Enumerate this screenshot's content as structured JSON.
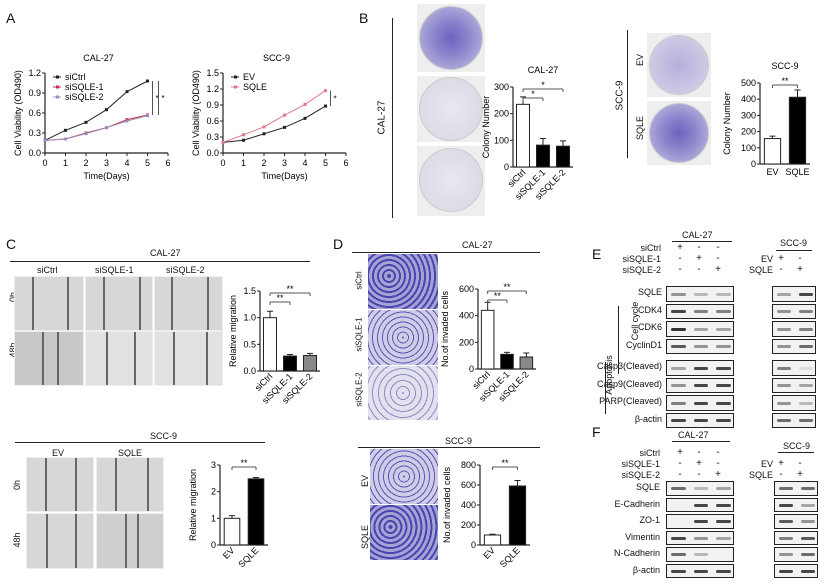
{
  "panels": {
    "A": {
      "label": "A"
    },
    "B": {
      "label": "B",
      "cell_left": "CAL-27",
      "cell_right": "SCC-9",
      "dish_labels_left": [
        "siCtrl",
        "siSQLE-1",
        "siSQLE-2"
      ],
      "dish_labels_right": [
        "EV",
        "SQLE"
      ]
    },
    "C": {
      "label": "C",
      "top_cell": "CAL-27",
      "top_cols": [
        "siCtrl",
        "siSQLE-1",
        "siSQLE-2"
      ],
      "rows": [
        "0h",
        "48h"
      ],
      "bottom_cell": "SCC-9",
      "bottom_cols": [
        "EV",
        "SQLE"
      ]
    },
    "D": {
      "label": "D",
      "top_cell": "CAL-27",
      "top_rows": [
        "siCtrl",
        "siSQLE-1",
        "siSQLE-2"
      ],
      "bottom_cell": "SCC-9",
      "bottom_rows": [
        "EV",
        "SQLE"
      ]
    },
    "E": {
      "label": "E",
      "cal_header": "CAL-27",
      "scc_header": "SCC-9",
      "cal_conditions": [
        {
          "name": "siCtrl",
          "signs": [
            "+",
            "-",
            "-"
          ]
        },
        {
          "name": "siSQLE-1",
          "signs": [
            "-",
            "+",
            "-"
          ]
        },
        {
          "name": "siSQLE-2",
          "signs": [
            "-",
            "-",
            "+"
          ]
        }
      ],
      "scc_conditions": [
        {
          "name": "EV",
          "signs": [
            "+",
            "-"
          ]
        },
        {
          "name": "SQLE",
          "signs": [
            "-",
            "+"
          ]
        }
      ],
      "proteins": [
        "SQLE",
        "CDK4",
        "CDK6",
        "CyclinD1",
        "Casp3(Cleaved)",
        "Casp9(Cleaved)",
        "PARP(Cleaved)",
        "β-actin"
      ],
      "group_cell_cycle": "Cell cycle",
      "group_apoptosis": "Apoptosis"
    },
    "F": {
      "label": "F",
      "cal_header": "CAL-27",
      "scc_header": "SCC-9",
      "cal_conditions": [
        {
          "name": "siCtrl",
          "signs": [
            "+",
            "-",
            "-"
          ]
        },
        {
          "name": "siSQLE-1",
          "signs": [
            "-",
            "+",
            "-"
          ]
        },
        {
          "name": "siSQLE-2",
          "signs": [
            "-",
            "-",
            "+"
          ]
        }
      ],
      "scc_conditions": [
        {
          "name": "EV",
          "signs": [
            "+",
            "-"
          ]
        },
        {
          "name": "SQLE",
          "signs": [
            "-",
            "+"
          ]
        }
      ],
      "proteins": [
        "SQLE",
        "E-Cadherin",
        "ZO-1",
        "Vimentin",
        "N-Cadherin",
        "β-actin"
      ]
    }
  },
  "chart_data": [
    {
      "id": "A1",
      "type": "line",
      "title": "CAL-27",
      "xlabel": "Time(Days)",
      "ylabel": "Cell Viability (OD490)",
      "x": [
        0,
        1,
        2,
        3,
        4,
        5
      ],
      "xlim": [
        0,
        6
      ],
      "ylim": [
        0,
        1.2
      ],
      "yticks": [
        "0.0",
        "0.3",
        "0.6",
        "0.9",
        "1.2"
      ],
      "xticks": [
        "0",
        "1",
        "2",
        "3",
        "4",
        "5",
        "6"
      ],
      "series": [
        {
          "name": "siCtrl",
          "color": "#222222",
          "values": [
            0.19,
            0.34,
            0.46,
            0.65,
            0.92,
            1.08
          ]
        },
        {
          "name": "siSQLE-1",
          "color": "#d0284a",
          "values": [
            0.19,
            0.21,
            0.3,
            0.38,
            0.5,
            0.57
          ]
        },
        {
          "name": "siSQLE-2",
          "color": "#9a8fb8",
          "values": [
            0.19,
            0.21,
            0.29,
            0.38,
            0.48,
            0.56
          ]
        }
      ],
      "annotations": [
        "*",
        "*"
      ]
    },
    {
      "id": "A2",
      "type": "line",
      "title": "SCC-9",
      "xlabel": "Time(Days)",
      "ylabel": "Cell Viability (OD490)",
      "x": [
        0,
        1,
        2,
        3,
        4,
        5
      ],
      "xlim": [
        0,
        6
      ],
      "ylim": [
        0,
        1.5
      ],
      "yticks": [
        "0.0",
        "0.3",
        "0.6",
        "0.9",
        "1.2",
        "1.5"
      ],
      "xticks": [
        "0",
        "1",
        "2",
        "3",
        "4",
        "5",
        "6"
      ],
      "series": [
        {
          "name": "EV",
          "color": "#222222",
          "values": [
            0.2,
            0.24,
            0.36,
            0.48,
            0.65,
            0.88
          ]
        },
        {
          "name": "SQLE",
          "color": "#e07a8a",
          "values": [
            0.2,
            0.34,
            0.49,
            0.71,
            0.91,
            1.17
          ]
        }
      ],
      "annotations": [
        "*"
      ]
    },
    {
      "id": "B1",
      "type": "bar",
      "title": "CAL-27",
      "ylabel": "Colony Number",
      "categories": [
        "siCtrl",
        "siSQLE-1",
        "siSQLE-2"
      ],
      "values": [
        235,
        82,
        78
      ],
      "errors": [
        28,
        25,
        20
      ],
      "colors": [
        "#ffffff",
        "#000000",
        "#000000"
      ],
      "ylim": [
        0,
        300
      ],
      "yticks": [
        "0",
        "100",
        "200",
        "300"
      ],
      "annotations": [
        "*",
        "*"
      ]
    },
    {
      "id": "B2",
      "type": "bar",
      "title": "SCC-9",
      "ylabel": "Colony Number",
      "categories": [
        "EV",
        "SQLE"
      ],
      "values": [
        157,
        412
      ],
      "errors": [
        15,
        45
      ],
      "colors": [
        "#ffffff",
        "#000000"
      ],
      "ylim": [
        0,
        500
      ],
      "yticks": [
        "0",
        "100",
        "200",
        "300",
        "400",
        "500"
      ],
      "annotations": [
        "**"
      ]
    },
    {
      "id": "C1",
      "type": "bar",
      "title": "",
      "ylabel": "Relative migration",
      "categories": [
        "siCtrl",
        "siSQLE-1",
        "siSQLE-2"
      ],
      "values": [
        1.0,
        0.28,
        0.29
      ],
      "errors": [
        0.12,
        0.03,
        0.04
      ],
      "colors": [
        "#ffffff",
        "#000000",
        "#888888"
      ],
      "ylim": [
        0,
        1.5
      ],
      "yticks": [
        "0.0",
        "0.5",
        "1.0",
        "1.5"
      ],
      "annotations": [
        "**",
        "**"
      ]
    },
    {
      "id": "C2",
      "type": "bar",
      "title": "",
      "ylabel": "Relative migration",
      "categories": [
        "EV",
        "SQLE"
      ],
      "values": [
        1.0,
        2.48
      ],
      "errors": [
        0.1,
        0.05
      ],
      "colors": [
        "#ffffff",
        "#000000"
      ],
      "ylim": [
        0,
        3
      ],
      "yticks": [
        "0",
        "1",
        "2",
        "3"
      ],
      "annotations": [
        "**"
      ]
    },
    {
      "id": "D1",
      "type": "bar",
      "title": "",
      "ylabel": "No.of invaded cells",
      "categories": [
        "siCtrl",
        "siSQLE-1",
        "siSQLE-2"
      ],
      "values": [
        440,
        110,
        90
      ],
      "errors": [
        60,
        15,
        30
      ],
      "colors": [
        "#ffffff",
        "#000000",
        "#888888"
      ],
      "ylim": [
        0,
        600
      ],
      "yticks": [
        "0",
        "200",
        "400",
        "600"
      ],
      "annotations": [
        "**",
        "**"
      ]
    },
    {
      "id": "D2",
      "type": "bar",
      "title": "",
      "ylabel": "No.of invaded cells",
      "categories": [
        "EV",
        "SQLE"
      ],
      "values": [
        100,
        590
      ],
      "errors": [
        8,
        55
      ],
      "colors": [
        "#ffffff",
        "#000000"
      ],
      "ylim": [
        0,
        800
      ],
      "yticks": [
        "0",
        "200",
        "400",
        "600",
        "800"
      ],
      "annotations": [
        "**"
      ]
    }
  ]
}
